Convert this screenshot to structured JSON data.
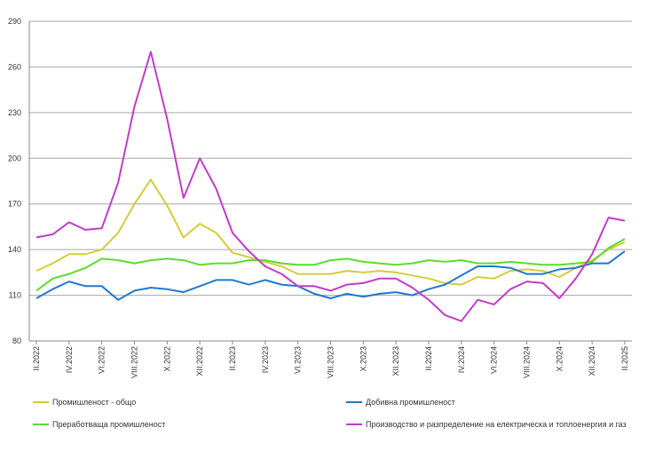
{
  "chart_data": {
    "type": "line",
    "x": [
      "II.2022",
      "III.2022",
      "IV.2022",
      "V.2022",
      "VI.2022",
      "VII.2022",
      "VIII.2022",
      "IX.2022",
      "X.2022",
      "XI.2022",
      "XII.2022",
      "I.2023",
      "II.2023",
      "III.2023",
      "IV.2023",
      "V.2023",
      "VI.2023",
      "VII.2023",
      "VIII.2023",
      "IX.2023",
      "X.2023",
      "XI.2023",
      "XII.2023",
      "I.2024",
      "II.2024",
      "III.2024",
      "IV.2024",
      "V.2024",
      "VI.2024",
      "VII.2024",
      "VIII.2024",
      "IX.2024",
      "X.2024",
      "XI.2024",
      "XII.2024",
      "I.2025",
      "II.2025"
    ],
    "x_tick_labels": [
      "II.2022",
      "IV.2022",
      "VI.2022",
      "VIII.2022",
      "X.2022",
      "XII.2022",
      "II.2023",
      "IV.2023",
      "VI.2023",
      "VIII.2023",
      "X.2023",
      "XII.2023",
      "II.2024",
      "IV.2024",
      "VI.2024",
      "VIII.2024",
      "X.2024",
      "XII.2024",
      "II.2025"
    ],
    "y_ticks": [
      "80",
      "110",
      "140",
      "170",
      "200",
      "230",
      "260",
      "290"
    ],
    "ylim": [
      80,
      295
    ],
    "grid": true,
    "legend_position": "bottom",
    "series": [
      {
        "name": "Промишленост - общо",
        "color": "#d4cc3c",
        "values": [
          126,
          131,
          137,
          137,
          140,
          151,
          170,
          186,
          169,
          148,
          157,
          151,
          138,
          135,
          132,
          129,
          124,
          124,
          124,
          126,
          125,
          126,
          125,
          123,
          121,
          118,
          117,
          122,
          121,
          126,
          127,
          126,
          122,
          128,
          133,
          140,
          145
        ]
      },
      {
        "name": "Добивна промишленост",
        "color": "#1f78d1",
        "values": [
          108,
          114,
          119,
          116,
          116,
          107,
          113,
          115,
          114,
          112,
          116,
          120,
          120,
          117,
          120,
          117,
          116,
          111,
          108,
          111,
          109,
          111,
          112,
          110,
          114,
          117,
          123,
          129,
          129,
          128,
          124,
          124,
          127,
          128,
          131,
          131,
          139
        ]
      },
      {
        "name": "Преработваща промишленост",
        "color": "#5cdc2c",
        "values": [
          113,
          121,
          124,
          128,
          134,
          133,
          131,
          133,
          134,
          133,
          130,
          131,
          131,
          133,
          133,
          131,
          130,
          130,
          133,
          134,
          132,
          131,
          130,
          131,
          133,
          132,
          133,
          131,
          131,
          132,
          131,
          130,
          130,
          131,
          132,
          141,
          147
        ]
      },
      {
        "name": "Производство и разпределение на електрическа и топлоенергия и газ",
        "color": "#c03cc8",
        "values": [
          148,
          150,
          158,
          153,
          154,
          184,
          234,
          270,
          226,
          174,
          200,
          180,
          151,
          139,
          129,
          124,
          116,
          116,
          113,
          117,
          118,
          121,
          121,
          115,
          107,
          97,
          93,
          107,
          104,
          114,
          119,
          118,
          108,
          121,
          137,
          161,
          159
        ]
      }
    ]
  }
}
